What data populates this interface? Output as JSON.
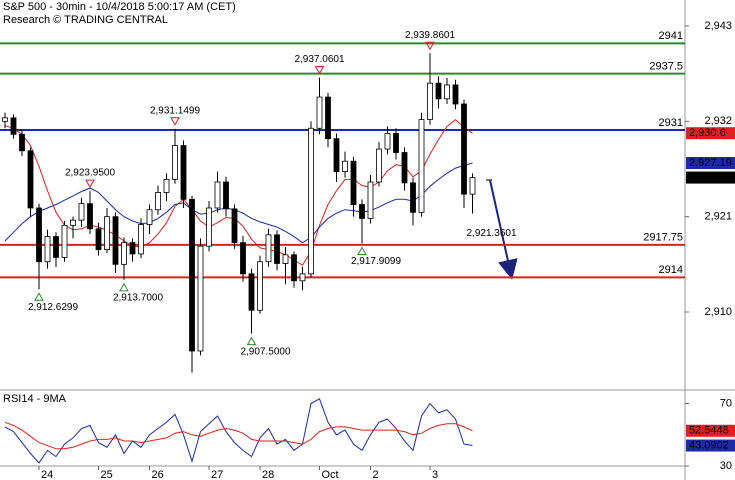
{
  "chart_data": [
    {
      "type": "candlestick",
      "title": "S&P 500 - 30min - 10/4/2018 5:00:17 AM (CET)",
      "subtitle": "Research © TRADING CENTRAL",
      "categories": [
        null,
        null,
        null,
        null,
        "24",
        null,
        null,
        null,
        null,
        null,
        null,
        "25",
        null,
        null,
        null,
        null,
        null,
        "26",
        null,
        null,
        null,
        null,
        null,
        null,
        "27",
        null,
        null,
        null,
        null,
        null,
        "28",
        null,
        null,
        null,
        null,
        null,
        null,
        "Oct",
        null,
        null,
        null,
        null,
        null,
        "2",
        null,
        null,
        null,
        null,
        null,
        null,
        "3",
        null,
        null,
        null,
        null,
        null
      ],
      "candles": {
        "open": [
          2932.0,
          2932.4,
          2930.5,
          2928.6,
          2922.0,
          2915.8,
          2918.7,
          2916.3,
          2920.0,
          2920.6,
          2922.5,
          2919.6,
          2917.2,
          2921.0,
          2915.5,
          2918.0,
          2916.7,
          2920.1,
          2921.8,
          2923.8,
          2925.3,
          2929.2,
          2923.0,
          2905.5,
          2917.6,
          2922.0,
          2925.0,
          2921.9,
          2918.0,
          2914.4,
          2910.2,
          2915.8,
          2918.9,
          2915.6,
          2916.6,
          2913.6,
          2914.4,
          2931.2,
          2934.8,
          2930.0,
          2926.2,
          2927.4,
          2922.4,
          2920.8,
          2925.0,
          2928.8,
          2930.6,
          2928.4,
          2924.9,
          2921.5,
          2932.2,
          2936.4,
          2934.6,
          2936.2,
          2934.0,
          2923.6
        ],
        "high": [
          2933.0,
          2932.8,
          2931.0,
          2929.0,
          2922.5,
          2919.5,
          2919.2,
          2920.5,
          2921.0,
          2923.2,
          2923.95,
          2920.3,
          2922.0,
          2921.5,
          2918.6,
          2918.5,
          2920.8,
          2922.4,
          2924.6,
          2926.0,
          2931.1499,
          2929.8,
          2923.4,
          2918.5,
          2922.8,
          2926.2,
          2925.6,
          2922.4,
          2918.8,
          2915.0,
          2916.5,
          2919.6,
          2919.4,
          2917.5,
          2917.0,
          2915.2,
          2932.0,
          2937.0601,
          2935.3,
          2930.6,
          2928.5,
          2927.9,
          2923.0,
          2925.8,
          2929.6,
          2931.4,
          2931.2,
          2929.0,
          2925.5,
          2933.0,
          2939.8601,
          2937.2,
          2937.0,
          2936.8,
          2934.5,
          2926.0
        ],
        "low": [
          2931.2,
          2930.0,
          2928.0,
          2921.0,
          2912.6299,
          2915.0,
          2915.2,
          2915.8,
          2918.5,
          2919.8,
          2919.0,
          2916.5,
          2916.8,
          2914.5,
          2913.7,
          2915.8,
          2916.2,
          2919.0,
          2921.2,
          2922.8,
          2924.8,
          2922.0,
          2903.0,
          2905.0,
          2917.0,
          2921.5,
          2921.0,
          2917.3,
          2913.5,
          2907.5,
          2909.8,
          2915.2,
          2914.8,
          2913.2,
          2912.8,
          2912.5,
          2914.0,
          2930.5,
          2929.0,
          2925.0,
          2925.5,
          2921.0,
          2917.9099,
          2920.2,
          2924.5,
          2928.2,
          2927.6,
          2924.0,
          2920.0,
          2921.0,
          2931.6,
          2933.5,
          2934.0,
          2933.4,
          2922.0,
          2921.3601
        ],
        "close": [
          2932.4,
          2930.5,
          2928.6,
          2922.0,
          2915.8,
          2918.7,
          2916.3,
          2920.0,
          2920.6,
          2922.5,
          2919.6,
          2917.2,
          2921.0,
          2915.5,
          2918.0,
          2916.7,
          2920.1,
          2921.8,
          2923.8,
          2925.3,
          2929.2,
          2923.0,
          2905.5,
          2917.6,
          2922.0,
          2925.0,
          2921.9,
          2918.0,
          2914.4,
          2910.2,
          2915.8,
          2918.9,
          2915.6,
          2916.6,
          2913.6,
          2914.4,
          2931.2,
          2934.8,
          2930.0,
          2926.2,
          2927.4,
          2922.4,
          2920.8,
          2925.0,
          2928.8,
          2930.6,
          2928.4,
          2924.9,
          2921.5,
          2932.2,
          2936.4,
          2934.6,
          2936.2,
          2934.0,
          2923.6,
          2925.51
        ]
      },
      "series": [
        {
          "color": "#e02020",
          "values": [
            2931.5,
            2931.2,
            2930.5,
            2929.2,
            2926.8,
            2924.0,
            2921.5,
            2920.0,
            2919.5,
            2919.6,
            2920.0,
            2919.8,
            2919.4,
            2918.9,
            2918.2,
            2917.6,
            2917.5,
            2918.0,
            2919.0,
            2920.3,
            2922.2,
            2923.0,
            2921.8,
            2920.5,
            2919.8,
            2920.3,
            2920.9,
            2920.8,
            2919.9,
            2918.4,
            2917.4,
            2917.2,
            2917.0,
            2916.6,
            2916.0,
            2915.4,
            2917.0,
            2920.0,
            2922.4,
            2924.0,
            2925.3,
            2925.3,
            2924.6,
            2924.4,
            2925.0,
            2926.3,
            2927.0,
            2926.8,
            2925.6,
            2926.3,
            2928.2,
            2929.9,
            2931.4,
            2932.2,
            2931.3,
            2930.63
          ]
        },
        {
          "color": "#1a2aa8",
          "values": [
            2918.2,
            2919.2,
            2920.2,
            2921.0,
            2921.6,
            2922.0,
            2922.4,
            2922.9,
            2923.4,
            2923.9,
            2924.3,
            2923.8,
            2922.8,
            2921.8,
            2921.0,
            2920.5,
            2920.2,
            2920.3,
            2920.8,
            2921.5,
            2922.4,
            2922.6,
            2921.8,
            2921.3,
            2921.4,
            2921.8,
            2922.0,
            2921.8,
            2921.4,
            2920.8,
            2920.4,
            2920.1,
            2919.8,
            2919.3,
            2918.7,
            2918.0,
            2918.6,
            2919.8,
            2920.8,
            2921.4,
            2921.8,
            2921.7,
            2921.5,
            2921.7,
            2922.1,
            2922.6,
            2923.0,
            2923.0,
            2922.8,
            2923.5,
            2924.5,
            2925.3,
            2926.0,
            2926.6,
            2926.9,
            2927.19
          ]
        }
      ],
      "levels": [
        {
          "value": 2941,
          "color": "#2a8a2a"
        },
        {
          "value": 2937.5,
          "color": "#2a8a2a"
        },
        {
          "value": 2931,
          "color": "#1a2aa8"
        },
        {
          "value": 2917.75,
          "color": "#e02020"
        },
        {
          "value": 2914,
          "color": "#e02020"
        }
      ],
      "annotations": [
        {
          "text": "2,939.8601",
          "value": 2939.8601,
          "kind": "high"
        },
        {
          "text": "2,937.0601",
          "value": 2937.0601,
          "kind": "high"
        },
        {
          "text": "2,931.1499",
          "value": 2931.1499,
          "kind": "high"
        },
        {
          "text": "2,923.9500",
          "value": 2923.95,
          "kind": "high"
        },
        {
          "text": "2,912.6299",
          "value": 2912.6299,
          "kind": "low"
        },
        {
          "text": "2,913.7000",
          "value": 2913.7,
          "kind": "low"
        },
        {
          "text": "2,907.5000",
          "value": 2907.5,
          "kind": "low"
        },
        {
          "text": "2,917.9099",
          "value": 2917.9099,
          "kind": "low"
        },
        {
          "text": "2,921.3601",
          "value": 2921.3601,
          "kind": "none"
        }
      ],
      "last_labels": [
        {
          "value": 2930.63,
          "label": "2,930.6",
          "color": "#e02020"
        },
        {
          "value": 2927.19,
          "label": "2,927.19",
          "color": "#1a2aa8"
        },
        {
          "value": 2925.51,
          "label": "2,925.51",
          "color": "#000000"
        }
      ],
      "ylim": [
        2901,
        2946
      ],
      "yticks": [
        {
          "value": 2943,
          "label": "2,943"
        },
        {
          "value": 2932,
          "label": "2,932"
        },
        {
          "value": 2921,
          "label": "2,921"
        },
        {
          "value": 2910,
          "label": "2,910"
        }
      ]
    },
    {
      "type": "line",
      "title": "RSI14 - 9MA",
      "series": [
        {
          "color": "#1a2aa8",
          "values": [
            55,
            52,
            45,
            38,
            32,
            40,
            36,
            44,
            48,
            54,
            56,
            45,
            42,
            50,
            38,
            46,
            42,
            50,
            54,
            58,
            63,
            50,
            33,
            52,
            57,
            62,
            52,
            45,
            40,
            36,
            48,
            54,
            44,
            47,
            40,
            44,
            70,
            73,
            58,
            50,
            53,
            44,
            40,
            50,
            58,
            60,
            54,
            46,
            40,
            62,
            70,
            64,
            66,
            60,
            44,
            43.0902
          ]
        },
        {
          "color": "#e02020",
          "values": [
            58,
            56,
            53,
            49,
            45,
            43,
            41,
            41,
            42,
            44,
            46,
            47,
            47,
            48,
            46,
            46,
            45,
            46,
            47,
            48,
            51,
            52,
            50,
            49,
            51,
            53,
            54,
            53,
            51,
            47,
            46,
            46,
            46,
            46,
            45,
            44,
            47,
            52,
            54,
            55,
            55,
            54,
            53,
            53,
            53,
            53,
            53,
            52,
            50,
            51,
            54,
            56,
            57,
            57,
            55,
            52.5448
          ]
        }
      ],
      "last_labels": [
        {
          "value": 52.5448,
          "label": "52.5448",
          "color": "#e02020"
        },
        {
          "value": 43.0902,
          "label": "43.0902",
          "color": "#1a2aa8"
        }
      ],
      "ylim": [
        30,
        78
      ],
      "yticks": [
        70,
        30
      ]
    }
  ]
}
